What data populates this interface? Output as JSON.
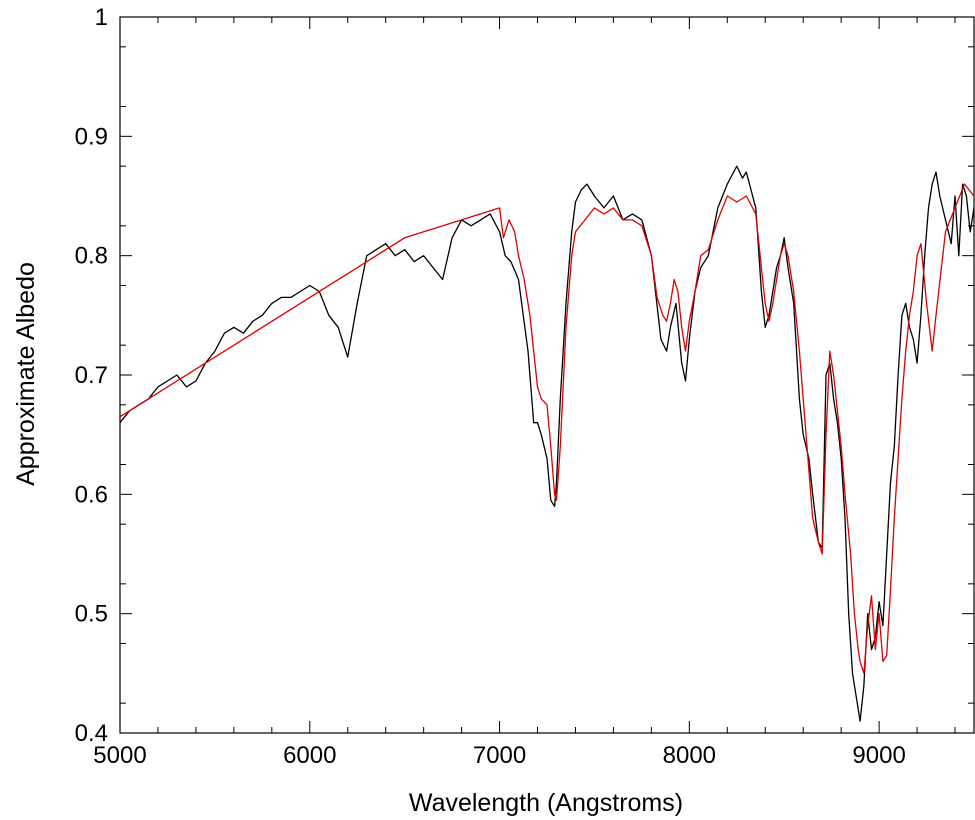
{
  "chart_data": {
    "type": "line",
    "title": "",
    "xlabel": "Wavelength (Angstroms)",
    "ylabel": "Approximate Albedo",
    "xlim": [
      5000,
      9500
    ],
    "ylim": [
      0.4,
      1.0
    ],
    "xticks": [
      5000,
      6000,
      7000,
      8000,
      9000
    ],
    "xtick_labels": [
      "5000",
      "6000",
      "7000",
      "8000",
      "9000"
    ],
    "yticks": [
      0.4,
      0.5,
      0.6,
      0.7,
      0.8,
      0.9,
      1.0
    ],
    "ytick_labels": [
      "0.4",
      "0.5",
      "0.6",
      "0.7",
      "0.8",
      "0.9",
      "1"
    ],
    "grid": false,
    "legend": "none",
    "series": [
      {
        "color": "#000000",
        "x": [
          5000,
          5050,
          5100,
          5150,
          5200,
          5250,
          5300,
          5350,
          5400,
          5450,
          5500,
          5550,
          5600,
          5650,
          5700,
          5750,
          5800,
          5850,
          5900,
          5950,
          6000,
          6050,
          6100,
          6150,
          6200,
          6250,
          6300,
          6350,
          6400,
          6450,
          6500,
          6550,
          6600,
          6650,
          6700,
          6750,
          6800,
          6850,
          6900,
          6950,
          7000,
          7030,
          7060,
          7100,
          7150,
          7180,
          7200,
          7220,
          7250,
          7270,
          7290,
          7300,
          7320,
          7350,
          7380,
          7400,
          7430,
          7460,
          7500,
          7550,
          7600,
          7650,
          7700,
          7750,
          7800,
          7850,
          7880,
          7900,
          7930,
          7960,
          7980,
          8000,
          8030,
          8060,
          8100,
          8150,
          8200,
          8250,
          8280,
          8300,
          8350,
          8380,
          8400,
          8420,
          8440,
          8460,
          8480,
          8500,
          8520,
          8550,
          8580,
          8600,
          8630,
          8650,
          8680,
          8700,
          8720,
          8740,
          8760,
          8780,
          8800,
          8820,
          8840,
          8860,
          8880,
          8900,
          8920,
          8940,
          8960,
          8980,
          9000,
          9020,
          9040,
          9060,
          9080,
          9100,
          9120,
          9140,
          9160,
          9180,
          9200,
          9220,
          9240,
          9260,
          9280,
          9300,
          9320,
          9350,
          9380,
          9400,
          9420,
          9440,
          9460,
          9480,
          9500
        ],
        "y": [
          0.66,
          0.67,
          0.675,
          0.68,
          0.69,
          0.695,
          0.7,
          0.69,
          0.695,
          0.71,
          0.72,
          0.735,
          0.74,
          0.735,
          0.745,
          0.75,
          0.76,
          0.765,
          0.765,
          0.77,
          0.775,
          0.77,
          0.75,
          0.74,
          0.715,
          0.76,
          0.8,
          0.805,
          0.81,
          0.8,
          0.805,
          0.795,
          0.8,
          0.79,
          0.78,
          0.815,
          0.83,
          0.825,
          0.83,
          0.835,
          0.82,
          0.8,
          0.795,
          0.78,
          0.72,
          0.66,
          0.66,
          0.65,
          0.63,
          0.595,
          0.59,
          0.61,
          0.68,
          0.76,
          0.82,
          0.845,
          0.855,
          0.86,
          0.85,
          0.84,
          0.85,
          0.83,
          0.835,
          0.83,
          0.8,
          0.73,
          0.72,
          0.74,
          0.76,
          0.71,
          0.695,
          0.73,
          0.77,
          0.79,
          0.8,
          0.84,
          0.86,
          0.875,
          0.865,
          0.87,
          0.84,
          0.77,
          0.74,
          0.75,
          0.77,
          0.79,
          0.8,
          0.815,
          0.79,
          0.76,
          0.68,
          0.65,
          0.63,
          0.6,
          0.56,
          0.555,
          0.7,
          0.71,
          0.68,
          0.66,
          0.63,
          0.58,
          0.5,
          0.45,
          0.43,
          0.41,
          0.44,
          0.5,
          0.47,
          0.48,
          0.51,
          0.49,
          0.55,
          0.61,
          0.64,
          0.7,
          0.75,
          0.76,
          0.74,
          0.73,
          0.71,
          0.75,
          0.8,
          0.84,
          0.86,
          0.87,
          0.85,
          0.83,
          0.81,
          0.85,
          0.8,
          0.86,
          0.85,
          0.82,
          0.84
        ]
      },
      {
        "color": "#dd0000",
        "x": [
          5000,
          6500,
          7000,
          7020,
          7050,
          7080,
          7100,
          7130,
          7160,
          7200,
          7220,
          7250,
          7270,
          7290,
          7300,
          7320,
          7350,
          7380,
          7400,
          7450,
          7500,
          7550,
          7600,
          7650,
          7700,
          7750,
          7800,
          7830,
          7860,
          7880,
          7900,
          7920,
          7940,
          7960,
          7980,
          8000,
          8030,
          8060,
          8100,
          8150,
          8200,
          8250,
          8300,
          8350,
          8380,
          8400,
          8420,
          8440,
          8460,
          8480,
          8500,
          8520,
          8550,
          8580,
          8600,
          8630,
          8650,
          8680,
          8700,
          8720,
          8740,
          8760,
          8780,
          8800,
          8820,
          8850,
          8870,
          8890,
          8900,
          8920,
          8940,
          8960,
          8980,
          9000,
          9020,
          9040,
          9060,
          9080,
          9100,
          9120,
          9140,
          9160,
          9180,
          9200,
          9220,
          9250,
          9280,
          9300,
          9350,
          9400,
          9450,
          9500
        ],
        "y": [
          0.665,
          0.815,
          0.84,
          0.815,
          0.83,
          0.82,
          0.8,
          0.78,
          0.75,
          0.69,
          0.68,
          0.675,
          0.64,
          0.6,
          0.595,
          0.64,
          0.74,
          0.8,
          0.82,
          0.83,
          0.84,
          0.835,
          0.84,
          0.83,
          0.83,
          0.825,
          0.8,
          0.765,
          0.75,
          0.745,
          0.76,
          0.78,
          0.77,
          0.74,
          0.72,
          0.745,
          0.77,
          0.8,
          0.805,
          0.83,
          0.85,
          0.845,
          0.85,
          0.835,
          0.79,
          0.76,
          0.745,
          0.76,
          0.78,
          0.8,
          0.81,
          0.8,
          0.77,
          0.72,
          0.68,
          0.62,
          0.58,
          0.56,
          0.55,
          0.65,
          0.72,
          0.7,
          0.67,
          0.64,
          0.6,
          0.55,
          0.5,
          0.47,
          0.46,
          0.45,
          0.49,
          0.515,
          0.47,
          0.5,
          0.46,
          0.465,
          0.52,
          0.58,
          0.63,
          0.68,
          0.72,
          0.75,
          0.77,
          0.8,
          0.81,
          0.76,
          0.72,
          0.75,
          0.82,
          0.84,
          0.86,
          0.85
        ]
      }
    ]
  }
}
